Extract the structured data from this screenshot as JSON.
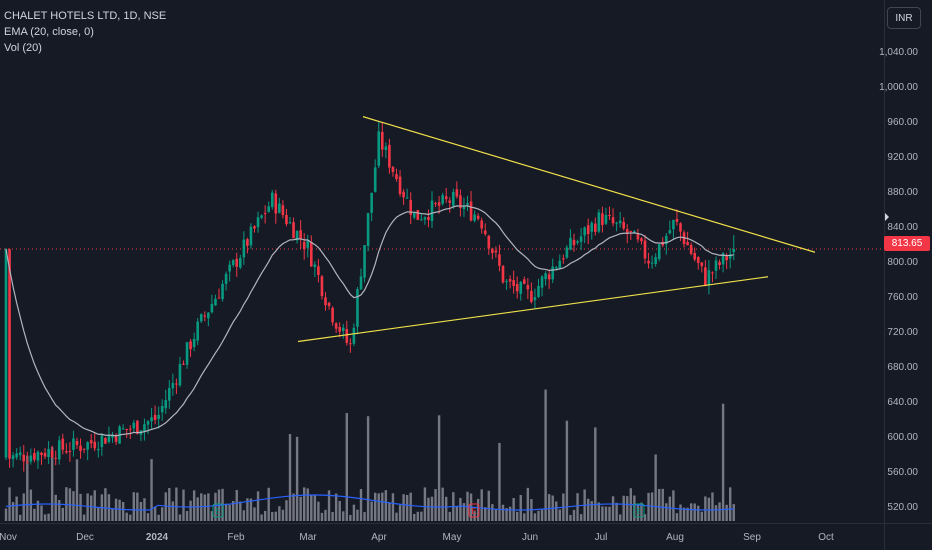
{
  "legend": {
    "symbol": "CHALET HOTELS LTD, 1D, NSE",
    "ema": "EMA (20, close, 0)",
    "vol": "Vol (20)"
  },
  "currency_button": "INR",
  "last_price": "813.65",
  "colors": {
    "background": "#161a25",
    "up": "#089981",
    "down": "#f23645",
    "ema": "#b2b5be",
    "trendline": "#f0e04a",
    "volume": "#9598a1",
    "vol_ma": "#2962ff"
  },
  "earnings_markers": [
    {
      "label": "E",
      "date": "Feb",
      "color": "#089981"
    },
    {
      "label": "E",
      "date": "May",
      "color": "#f23645"
    },
    {
      "label": "E",
      "date": "Aug",
      "color": "#089981"
    }
  ],
  "chart_data": {
    "type": "candlestick",
    "title": "CHALET HOTELS LTD, 1D, NSE",
    "y_ticks": [
      1040,
      1000,
      960,
      920,
      880,
      840,
      800,
      760,
      720,
      680,
      640,
      600,
      560,
      520
    ],
    "y_tick_labels": [
      "1,040.00",
      "1,000.00",
      "960.00",
      "920.00",
      "880.00",
      "840.00",
      "800.00",
      "760.00",
      "720.00",
      "680.00",
      "640.00",
      "600.00",
      "560.00",
      "520.00"
    ],
    "ylim": [
      500,
      1080
    ],
    "x_tick_labels": [
      "Nov",
      "Dec",
      "2024",
      "Feb",
      "Mar",
      "Apr",
      "May",
      "Jun",
      "Jul",
      "Aug",
      "Sep",
      "Oct"
    ],
    "x_range": [
      "Nov",
      "Oct"
    ],
    "last_price": 813.65,
    "approx_close_path": [
      [
        "Nov",
        575
      ],
      [
        "Dec",
        590
      ],
      [
        "2024",
        620
      ],
      [
        "Jan-mid",
        720
      ],
      [
        "Feb",
        800
      ],
      [
        "Feb-mid",
        870
      ],
      [
        "Mar",
        815
      ],
      [
        "Mar-mid",
        745
      ],
      [
        "Mar-end",
        700
      ],
      [
        "Apr",
        940
      ],
      [
        "Apr-mid",
        850
      ],
      [
        "May",
        870
      ],
      [
        "May-mid",
        850
      ],
      [
        "May-end",
        775
      ],
      [
        "Jun",
        760
      ],
      [
        "Jun-mid",
        810
      ],
      [
        "Jul",
        850
      ],
      [
        "Jul-mid",
        830
      ],
      [
        "Jul-end",
        800
      ],
      [
        "Aug",
        845
      ],
      [
        "Aug-mid",
        780
      ],
      [
        "Aug-end",
        813.65
      ]
    ],
    "annotations": [
      {
        "type": "trendline",
        "role": "upper",
        "from": [
          "Mar",
          965
        ],
        "to": [
          "Sep",
          810
        ]
      },
      {
        "type": "trendline",
        "role": "lower",
        "from": [
          "Feb-end",
          708
        ],
        "to": [
          "Aug-end",
          782
        ]
      }
    ],
    "indicators": [
      "EMA 20",
      "Volume 20"
    ],
    "grid": false
  }
}
